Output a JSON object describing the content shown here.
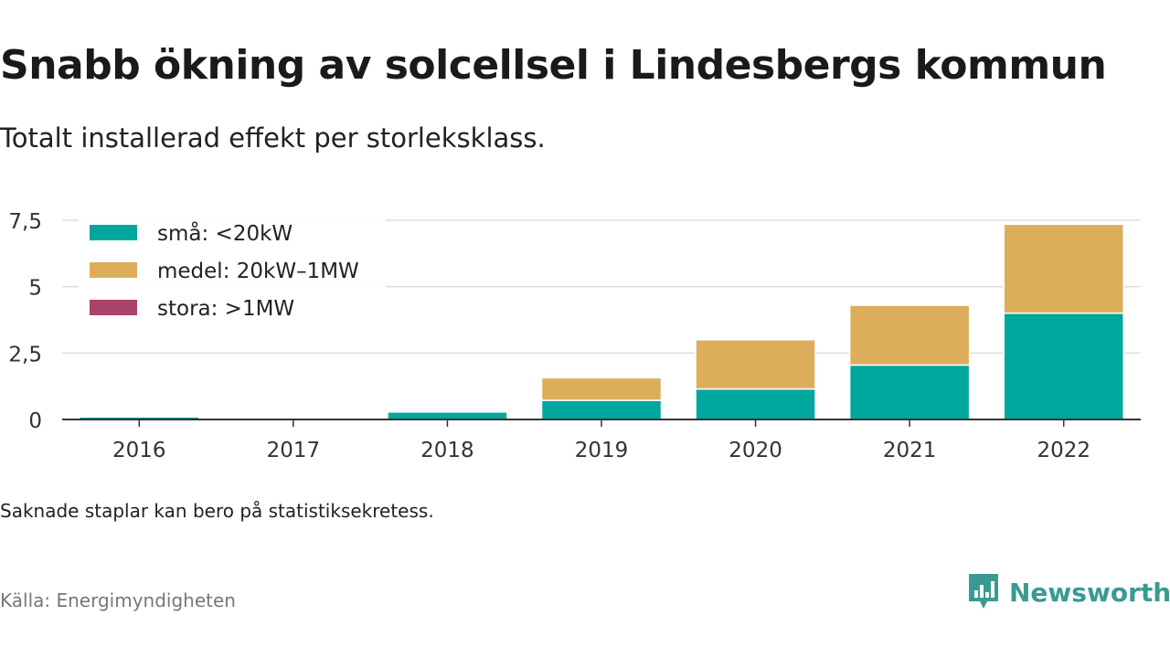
{
  "header": {
    "title": "Snabb ökning av solcellsel i Lindesbergs kommun",
    "subtitle": "Totalt installerad effekt per storleksklass."
  },
  "footer": {
    "note": "Saknade staplar kan bero på statistiksekretess.",
    "source": "Källa: Energimyndigheten",
    "brand": "Newsworthy",
    "brand_icon": "bar-chart-logo-icon"
  },
  "chart_data": {
    "type": "bar",
    "stacked": true,
    "categories": [
      "2016",
      "2017",
      "2018",
      "2019",
      "2020",
      "2021",
      "2022"
    ],
    "series": [
      {
        "name": "små: <20kW",
        "color": "#00a79d",
        "values": [
          0.1,
          0,
          0.28,
          0.72,
          1.15,
          2.05,
          4.0
        ]
      },
      {
        "name": "medel: 20kW–1MW",
        "color": "#dcae5c",
        "values": [
          0.05,
          0,
          0,
          0.85,
          1.85,
          2.25,
          3.35
        ]
      },
      {
        "name": "stora: >1MW",
        "color": "#a8436b",
        "values": [
          0,
          0,
          0,
          0,
          0,
          0,
          0
        ]
      }
    ],
    "y_ticks": [
      "0",
      "2,5",
      "5",
      "7,5"
    ],
    "y_tick_values": [
      0,
      2.5,
      5,
      7.5
    ],
    "ylim": [
      0,
      7.5
    ],
    "grid": true,
    "legend_position": "top-left"
  }
}
